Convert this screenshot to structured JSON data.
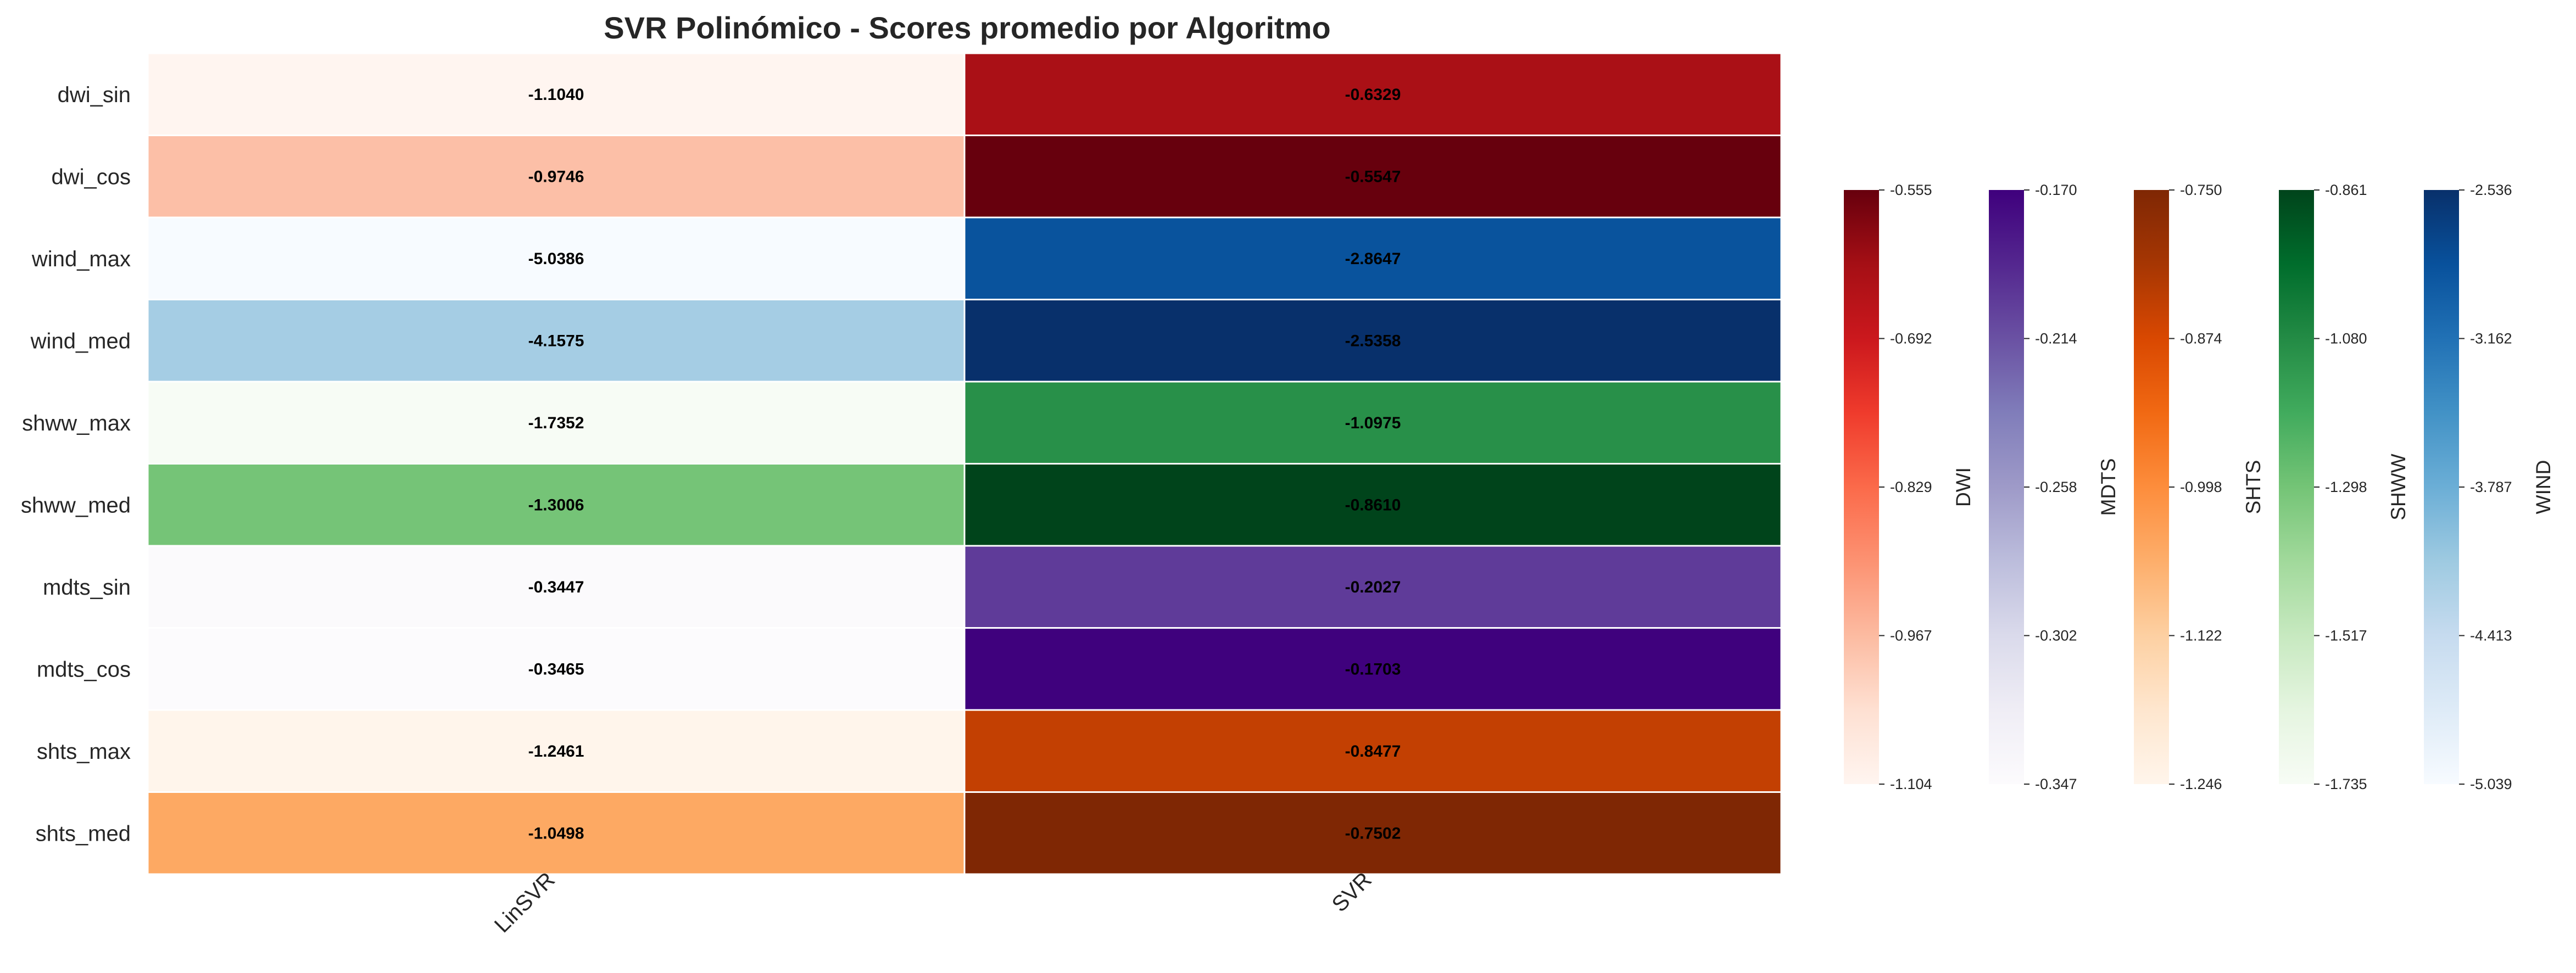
{
  "chart_data": {
    "type": "heatmap",
    "title": "SVR Polinómico - Scores promedio por Algoritmo",
    "columns": [
      "LinSVR",
      "SVR"
    ],
    "rows": [
      {
        "name": "dwi_sin",
        "group": "DWI",
        "values": [
          -1.104,
          -0.6329
        ],
        "labels": [
          "-1.1040",
          "-0.6329"
        ]
      },
      {
        "name": "dwi_cos",
        "group": "DWI",
        "values": [
          -0.9746,
          -0.5547
        ],
        "labels": [
          "-0.9746",
          "-0.5547"
        ]
      },
      {
        "name": "wind_max",
        "group": "WIND",
        "values": [
          -5.0386,
          -2.8647
        ],
        "labels": [
          "-5.0386",
          "-2.8647"
        ]
      },
      {
        "name": "wind_med",
        "group": "WIND",
        "values": [
          -4.1575,
          -2.5358
        ],
        "labels": [
          "-4.1575",
          "-2.5358"
        ]
      },
      {
        "name": "shww_max",
        "group": "SHWW",
        "values": [
          -1.7352,
          -1.0975
        ],
        "labels": [
          "-1.7352",
          "-1.0975"
        ]
      },
      {
        "name": "shww_med",
        "group": "SHWW",
        "values": [
          -1.3006,
          -0.861
        ],
        "labels": [
          "-1.3006",
          "-0.8610"
        ]
      },
      {
        "name": "mdts_sin",
        "group": "MDTS",
        "values": [
          -0.3447,
          -0.2027
        ],
        "labels": [
          "-0.3447",
          "-0.2027"
        ]
      },
      {
        "name": "mdts_cos",
        "group": "MDTS",
        "values": [
          -0.3465,
          -0.1703
        ],
        "labels": [
          "-0.3465",
          "-0.1703"
        ]
      },
      {
        "name": "shts_max",
        "group": "SHTS",
        "values": [
          -1.2461,
          -0.8477
        ],
        "labels": [
          "-1.2461",
          "-0.8477"
        ]
      },
      {
        "name": "shts_med",
        "group": "SHTS",
        "values": [
          -1.0498,
          -0.7502
        ],
        "labels": [
          "-1.0498",
          "-0.7502"
        ]
      }
    ],
    "colorbars": [
      {
        "name": "DWI",
        "colormap": "Reds",
        "range": [
          -1.104,
          -0.555
        ],
        "ticks": [
          "-0.555",
          "-0.692",
          "-0.829",
          "-0.967",
          "-1.104"
        ]
      },
      {
        "name": "MDTS",
        "colormap": "Purples",
        "range": [
          -0.347,
          -0.17
        ],
        "ticks": [
          "-0.170",
          "-0.214",
          "-0.258",
          "-0.302",
          "-0.347"
        ]
      },
      {
        "name": "SHTS",
        "colormap": "Oranges",
        "range": [
          -1.246,
          -0.75
        ],
        "ticks": [
          "-0.750",
          "-0.874",
          "-0.998",
          "-1.122",
          "-1.246"
        ]
      },
      {
        "name": "SHWW",
        "colormap": "Greens",
        "range": [
          -1.735,
          -0.861
        ],
        "ticks": [
          "-0.861",
          "-1.080",
          "-1.298",
          "-1.517",
          "-1.735"
        ]
      },
      {
        "name": "WIND",
        "colormap": "Blues",
        "range": [
          -5.039,
          -2.536
        ],
        "ticks": [
          "-2.536",
          "-3.162",
          "-3.787",
          "-4.413",
          "-5.039"
        ]
      }
    ],
    "colormap_stops": {
      "Reds": [
        "#fff5f0",
        "#fee0d2",
        "#fcbba1",
        "#fc9272",
        "#fb6a4a",
        "#ef3b2c",
        "#cb181d",
        "#a50f15",
        "#67000d"
      ],
      "Purples": [
        "#fcfbfd",
        "#efedf5",
        "#dadaeb",
        "#bcbddc",
        "#9e9ac8",
        "#807dba",
        "#6a51a3",
        "#54278f",
        "#3f007d"
      ],
      "Oranges": [
        "#fff5eb",
        "#fee6ce",
        "#fdd0a2",
        "#fdae6b",
        "#fd8d3c",
        "#f16913",
        "#d94801",
        "#a63603",
        "#7f2704"
      ],
      "Greens": [
        "#f7fcf5",
        "#e5f5e0",
        "#c7e9c0",
        "#a1d99b",
        "#74c476",
        "#41ab5d",
        "#238b45",
        "#006d2c",
        "#00441b"
      ],
      "Blues": [
        "#f7fbff",
        "#deebf7",
        "#c6dbef",
        "#9ecae1",
        "#6baed6",
        "#4292c6",
        "#2171b5",
        "#08519c",
        "#08306b"
      ]
    }
  }
}
